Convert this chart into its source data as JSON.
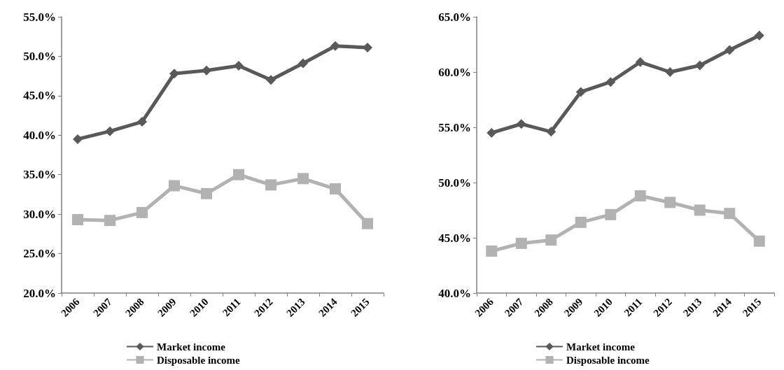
{
  "chart_data": [
    {
      "type": "line",
      "categories": [
        "2006",
        "2007",
        "2008",
        "2009",
        "2010",
        "2011",
        "2012",
        "2013",
        "2014",
        "2015"
      ],
      "series": [
        {
          "name": "Market income",
          "color": "#595959",
          "marker": "diamond",
          "values": [
            39.5,
            40.5,
            41.7,
            47.8,
            48.2,
            48.8,
            47.0,
            49.1,
            51.3,
            51.1
          ]
        },
        {
          "name": "Disposable income",
          "color": "#b2b2b2",
          "marker": "square",
          "values": [
            29.3,
            29.2,
            30.2,
            33.6,
            32.6,
            35.0,
            33.7,
            34.5,
            33.2,
            28.8
          ]
        }
      ],
      "ylim": [
        20,
        55
      ],
      "yticks": [
        {
          "value": 20,
          "label": "20.0%"
        },
        {
          "value": 25,
          "label": "25.0%"
        },
        {
          "value": 30,
          "label": "30.0%"
        },
        {
          "value": 35,
          "label": "35.0%"
        },
        {
          "value": 40,
          "label": "40.0%"
        },
        {
          "value": 45,
          "label": "45.0%"
        },
        {
          "value": 50,
          "label": "50.0%"
        },
        {
          "value": 55,
          "label": "55.0%"
        }
      ],
      "grid": false,
      "legend": "bottom"
    },
    {
      "type": "line",
      "categories": [
        "2006",
        "2007",
        "2008",
        "2009",
        "2010",
        "2011",
        "2012",
        "2013",
        "2014",
        "2015"
      ],
      "series": [
        {
          "name": "Market income",
          "color": "#595959",
          "marker": "diamond",
          "values": [
            54.5,
            55.3,
            54.6,
            58.2,
            59.1,
            60.9,
            60.0,
            60.6,
            62.0,
            63.3
          ]
        },
        {
          "name": "Disposable income",
          "color": "#b2b2b2",
          "marker": "square",
          "values": [
            43.8,
            44.5,
            44.8,
            46.4,
            47.1,
            48.8,
            48.2,
            47.5,
            47.2,
            44.7
          ]
        }
      ],
      "ylim": [
        40,
        65
      ],
      "yticks": [
        {
          "value": 40,
          "label": "40.0%"
        },
        {
          "value": 45,
          "label": "45.0%"
        },
        {
          "value": 50,
          "label": "50.0%"
        },
        {
          "value": 55,
          "label": "55.0%"
        },
        {
          "value": 60,
          "label": "60.0%"
        },
        {
          "value": 65,
          "label": "65.0%"
        }
      ],
      "grid": false,
      "legend": "bottom"
    }
  ]
}
